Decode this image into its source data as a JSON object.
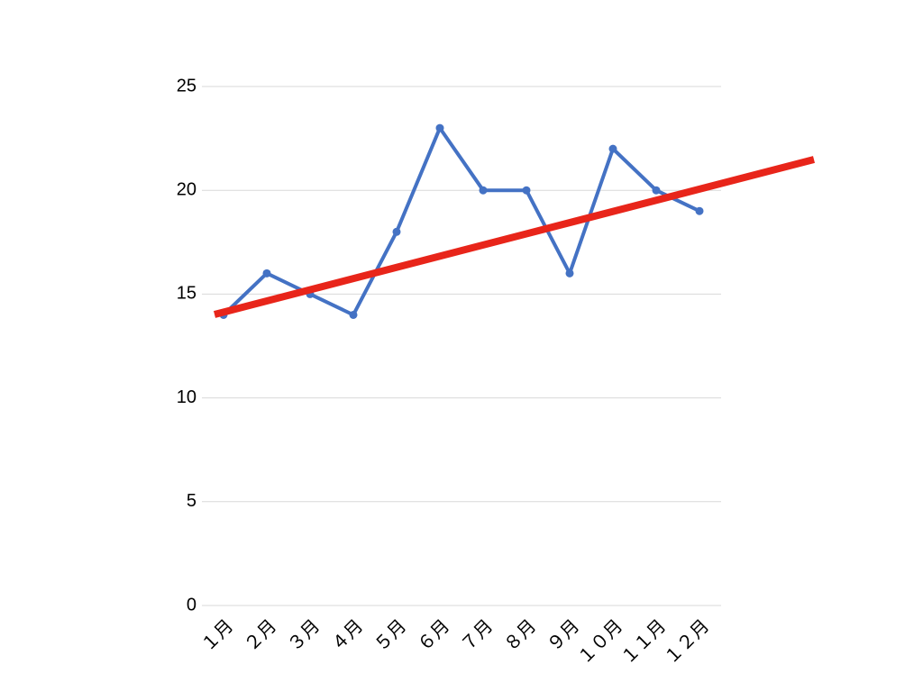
{
  "chart_data": {
    "type": "line",
    "categories": [
      "１月",
      "２月",
      "３月",
      "４月",
      "５月",
      "６月",
      "７月",
      "８月",
      "９月",
      "１０月",
      "１１月",
      "１２月"
    ],
    "series": [
      {
        "color": "#4472c4",
        "values": [
          14,
          16,
          15,
          14,
          18,
          23,
          20,
          20,
          16,
          22,
          20,
          19
        ]
      }
    ],
    "ylim": [
      0,
      25
    ],
    "yticks": [
      0,
      5,
      10,
      15,
      20,
      25
    ],
    "grid": true
  }
}
